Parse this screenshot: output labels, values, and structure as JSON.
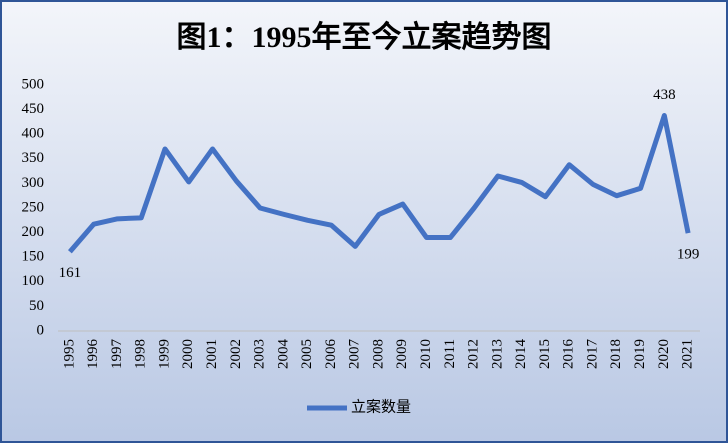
{
  "chart_data": {
    "type": "line",
    "title": "图1：1995年至今立案趋势图",
    "categories": [
      "1995",
      "1996",
      "1997",
      "1998",
      "1999",
      "2000",
      "2001",
      "2002",
      "2003",
      "2004",
      "2005",
      "2006",
      "2007",
      "2008",
      "2009",
      "2010",
      "2011",
      "2012",
      "2013",
      "2014",
      "2015",
      "2016",
      "2017",
      "2018",
      "2019",
      "2020",
      "2021"
    ],
    "series": [
      {
        "name": "立案数量",
        "color": "#4472c4",
        "values": [
          161,
          217,
          228,
          230,
          370,
          303,
          370,
          305,
          250,
          237,
          225,
          215,
          172,
          237,
          258,
          190,
          190,
          250,
          315,
          302,
          273,
          338,
          298,
          275,
          290,
          438,
          199
        ],
        "value_labels": [
          "161",
          null,
          null,
          null,
          null,
          null,
          null,
          null,
          null,
          null,
          null,
          null,
          null,
          null,
          null,
          null,
          null,
          null,
          null,
          null,
          null,
          null,
          null,
          null,
          null,
          "438",
          "199"
        ]
      }
    ],
    "ylim": [
      0,
      500
    ],
    "yticks": [
      0,
      50,
      100,
      150,
      200,
      250,
      300,
      350,
      400,
      450,
      500
    ],
    "legend": "bottom"
  }
}
